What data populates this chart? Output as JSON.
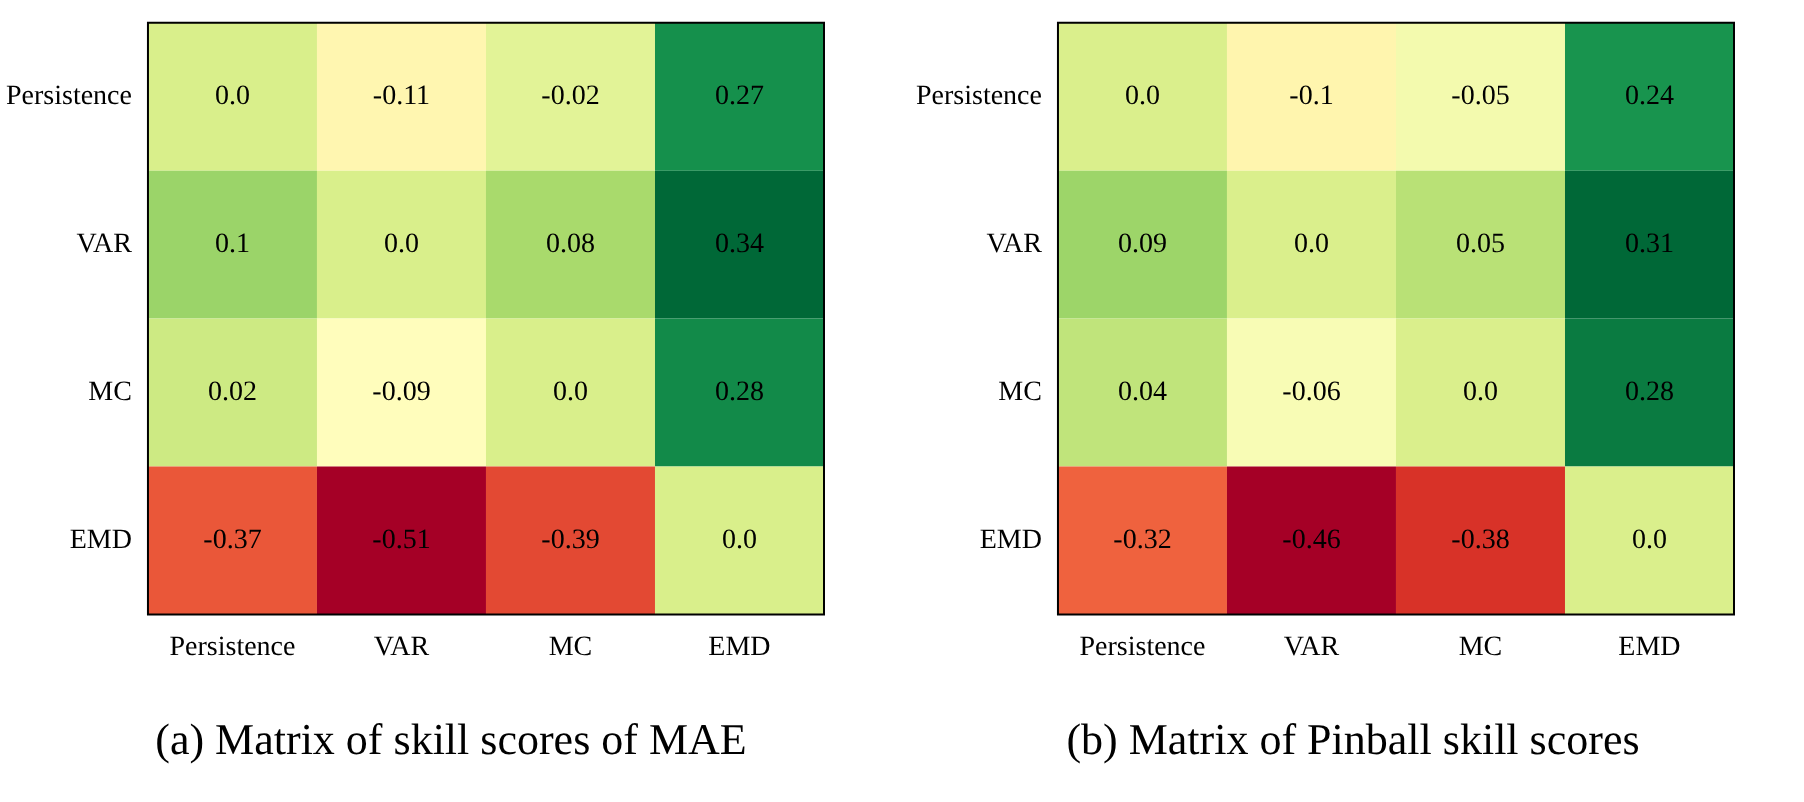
{
  "chart_data": [
    {
      "type": "heatmap",
      "title": "(a) Matrix of skill scores of MAE",
      "categories": [
        "Persistence",
        "VAR",
        "MC",
        "EMD"
      ],
      "y_categories": [
        "Persistence",
        "VAR",
        "MC",
        "EMD"
      ],
      "cells": [
        [
          0.0,
          -0.11,
          -0.02,
          0.27
        ],
        [
          0.1,
          0.0,
          0.08,
          0.34
        ],
        [
          0.02,
          -0.09,
          0.0,
          0.28
        ],
        [
          -0.37,
          -0.51,
          -0.39,
          0.0
        ]
      ],
      "cell_labels": [
        [
          "0.0",
          "-0.11",
          "-0.02",
          "0.27"
        ],
        [
          "0.1",
          "0.0",
          "0.08",
          "0.34"
        ],
        [
          "0.02",
          "-0.09",
          "0.0",
          "0.28"
        ],
        [
          "-0.37",
          "-0.51",
          "-0.39",
          "0.0"
        ]
      ]
    },
    {
      "type": "heatmap",
      "title": "(b) Matrix of Pinball skill scores",
      "categories": [
        "Persistence",
        "VAR",
        "MC",
        "EMD"
      ],
      "y_categories": [
        "Persistence",
        "VAR",
        "MC",
        "EMD"
      ],
      "cells": [
        [
          0.0,
          -0.1,
          -0.05,
          0.24
        ],
        [
          0.09,
          0.0,
          0.05,
          0.31
        ],
        [
          0.04,
          -0.06,
          0.0,
          0.28
        ],
        [
          -0.32,
          -0.46,
          -0.38,
          0.0
        ]
      ],
      "cell_labels": [
        [
          "0.0",
          "-0.1",
          "-0.05",
          "0.24"
        ],
        [
          "0.09",
          "0.0",
          "0.05",
          "0.31"
        ],
        [
          "0.04",
          "-0.06",
          "0.0",
          "0.28"
        ],
        [
          "-0.32",
          "-0.46",
          "-0.38",
          "0.0"
        ]
      ]
    }
  ]
}
